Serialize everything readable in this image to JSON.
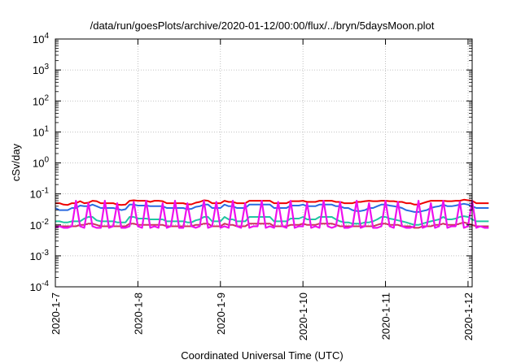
{
  "chart_data": {
    "type": "line",
    "title": "/data/run/goesPlots/archive/2020-01-12/00:00/flux/../bryn/5daysMoon.plot",
    "xlabel": "Coordinated Universal Time (UTC)",
    "ylabel": "cSv/day",
    "y_scale": "log",
    "ylim": [
      0.0001,
      10000
    ],
    "xlim": [
      0,
      5.05
    ],
    "grid": true,
    "legend": "none",
    "x_ticks": [
      {
        "value": 0,
        "label": "2020-1-7"
      },
      {
        "value": 1,
        "label": "2020-1-8"
      },
      {
        "value": 2,
        "label": "2020-1-9"
      },
      {
        "value": 3,
        "label": "2020-1-10"
      },
      {
        "value": 4,
        "label": "2020-1-11"
      },
      {
        "value": 5,
        "label": "2020-1-12"
      }
    ],
    "y_ticks": [
      {
        "value": 0.0001,
        "base": "10",
        "exp": "-4"
      },
      {
        "value": 0.001,
        "base": "10",
        "exp": "-3"
      },
      {
        "value": 0.01,
        "base": "10",
        "exp": "-2"
      },
      {
        "value": 0.1,
        "base": "10",
        "exp": "-1"
      },
      {
        "value": 1,
        "base": "10",
        "exp": "0"
      },
      {
        "value": 10,
        "base": "10",
        "exp": "1"
      },
      {
        "value": 100,
        "base": "10",
        "exp": "2"
      },
      {
        "value": 1000,
        "base": "10",
        "exp": "3"
      },
      {
        "value": 10000,
        "base": "10",
        "exp": "4"
      }
    ],
    "x_step": 0.05,
    "series": [
      {
        "color": "#ee0000",
        "values": [
          0.05,
          0.05,
          0.045,
          0.044,
          0.05,
          0.05,
          0.058,
          0.05,
          0.052,
          0.06,
          0.058,
          0.05,
          0.05,
          0.05,
          0.05,
          0.045,
          0.044,
          0.045,
          0.06,
          0.062,
          0.06,
          0.06,
          0.06,
          0.055,
          0.06,
          0.06,
          0.058,
          0.05,
          0.05,
          0.05,
          0.05,
          0.05,
          0.046,
          0.046,
          0.052,
          0.055,
          0.062,
          0.06,
          0.05,
          0.05,
          0.05,
          0.06,
          0.055,
          0.055,
          0.05,
          0.05,
          0.05,
          0.06,
          0.06,
          0.06,
          0.06,
          0.06,
          0.06,
          0.05,
          0.05,
          0.05,
          0.05,
          0.058,
          0.058,
          0.058,
          0.06,
          0.055,
          0.055,
          0.055,
          0.06,
          0.06,
          0.06,
          0.06,
          0.055,
          0.055,
          0.05,
          0.05,
          0.05,
          0.055,
          0.055,
          0.058,
          0.06,
          0.058,
          0.058,
          0.06,
          0.06,
          0.058,
          0.058,
          0.055,
          0.055,
          0.05,
          0.05,
          0.045,
          0.045,
          0.05,
          0.055,
          0.06,
          0.06,
          0.06,
          0.06,
          0.058,
          0.058,
          0.06,
          0.06,
          0.065,
          0.062,
          0.06,
          0.05,
          0.05,
          0.05,
          0.05
        ]
      },
      {
        "color": "#2a6ae0",
        "values": [
          0.035,
          0.03,
          0.03,
          0.03,
          0.035,
          0.035,
          0.042,
          0.04,
          0.04,
          0.045,
          0.04,
          0.035,
          0.035,
          0.035,
          0.035,
          0.033,
          0.03,
          0.032,
          0.045,
          0.045,
          0.042,
          0.042,
          0.042,
          0.04,
          0.04,
          0.04,
          0.04,
          0.035,
          0.035,
          0.035,
          0.035,
          0.035,
          0.032,
          0.033,
          0.038,
          0.04,
          0.045,
          0.045,
          0.035,
          0.035,
          0.035,
          0.045,
          0.04,
          0.04,
          0.035,
          0.035,
          0.035,
          0.045,
          0.045,
          0.045,
          0.045,
          0.045,
          0.045,
          0.035,
          0.035,
          0.035,
          0.035,
          0.042,
          0.042,
          0.042,
          0.045,
          0.04,
          0.04,
          0.04,
          0.045,
          0.045,
          0.045,
          0.045,
          0.04,
          0.04,
          0.035,
          0.035,
          0.03,
          0.028,
          0.028,
          0.03,
          0.035,
          0.035,
          0.04,
          0.045,
          0.045,
          0.042,
          0.04,
          0.038,
          0.035,
          0.03,
          0.028,
          0.026,
          0.026,
          0.028,
          0.03,
          0.035,
          0.038,
          0.04,
          0.045,
          0.04,
          0.04,
          0.042,
          0.045,
          0.048,
          0.045,
          0.04,
          0.035,
          0.035,
          0.035,
          0.035
        ]
      },
      {
        "color": "#20c6a0",
        "values": [
          0.013,
          0.013,
          0.012,
          0.012,
          0.013,
          0.013,
          0.013,
          0.016,
          0.018,
          0.018,
          0.014,
          0.013,
          0.013,
          0.013,
          0.013,
          0.012,
          0.012,
          0.012,
          0.018,
          0.018,
          0.016,
          0.016,
          0.016,
          0.015,
          0.015,
          0.015,
          0.015,
          0.013,
          0.013,
          0.013,
          0.013,
          0.013,
          0.012,
          0.012,
          0.014,
          0.015,
          0.018,
          0.018,
          0.013,
          0.013,
          0.013,
          0.018,
          0.015,
          0.015,
          0.013,
          0.013,
          0.013,
          0.018,
          0.018,
          0.018,
          0.018,
          0.018,
          0.018,
          0.013,
          0.013,
          0.013,
          0.013,
          0.016,
          0.016,
          0.016,
          0.018,
          0.015,
          0.015,
          0.015,
          0.018,
          0.018,
          0.018,
          0.018,
          0.015,
          0.013,
          0.012,
          0.012,
          0.011,
          0.011,
          0.011,
          0.012,
          0.012,
          0.013,
          0.015,
          0.018,
          0.018,
          0.016,
          0.015,
          0.014,
          0.013,
          0.012,
          0.011,
          0.01,
          0.01,
          0.011,
          0.012,
          0.013,
          0.014,
          0.015,
          0.018,
          0.015,
          0.015,
          0.016,
          0.018,
          0.019,
          0.018,
          0.015,
          0.013,
          0.013,
          0.013,
          0.013
        ]
      },
      {
        "color": "#cc3360",
        "values": [
          0.009,
          0.009,
          0.009,
          0.009,
          0.009,
          0.009,
          0.01,
          0.01,
          0.011,
          0.011,
          0.01,
          0.009,
          0.009,
          0.009,
          0.009,
          0.009,
          0.009,
          0.009,
          0.011,
          0.011,
          0.01,
          0.01,
          0.01,
          0.01,
          0.01,
          0.01,
          0.01,
          0.009,
          0.009,
          0.009,
          0.009,
          0.009,
          0.009,
          0.009,
          0.01,
          0.01,
          0.011,
          0.011,
          0.009,
          0.009,
          0.009,
          0.011,
          0.01,
          0.01,
          0.009,
          0.009,
          0.009,
          0.011,
          0.011,
          0.011,
          0.011,
          0.011,
          0.011,
          0.009,
          0.009,
          0.009,
          0.009,
          0.01,
          0.01,
          0.01,
          0.011,
          0.01,
          0.01,
          0.01,
          0.011,
          0.011,
          0.011,
          0.011,
          0.01,
          0.009,
          0.009,
          0.009,
          0.009,
          0.009,
          0.009,
          0.009,
          0.009,
          0.009,
          0.01,
          0.011,
          0.011,
          0.01,
          0.01,
          0.01,
          0.009,
          0.009,
          0.009,
          0.008,
          0.008,
          0.009,
          0.009,
          0.009,
          0.01,
          0.01,
          0.011,
          0.01,
          0.01,
          0.01,
          0.011,
          0.012,
          0.011,
          0.01,
          0.009,
          0.009,
          0.009,
          0.009
        ]
      },
      {
        "color": "#ee10ee",
        "values": [
          0.008,
          0.009,
          0.008,
          0.008,
          0.009,
          0.06,
          0.009,
          0.008,
          0.05,
          0.009,
          0.008,
          0.008,
          0.06,
          0.008,
          0.009,
          0.05,
          0.008,
          0.008,
          0.009,
          0.055,
          0.009,
          0.008,
          0.06,
          0.008,
          0.009,
          0.008,
          0.05,
          0.008,
          0.009,
          0.06,
          0.008,
          0.008,
          0.05,
          0.009,
          0.008,
          0.009,
          0.06,
          0.008,
          0.009,
          0.055,
          0.008,
          0.009,
          0.008,
          0.06,
          0.009,
          0.008,
          0.05,
          0.008,
          0.009,
          0.009,
          0.06,
          0.008,
          0.009,
          0.008,
          0.055,
          0.009,
          0.008,
          0.06,
          0.008,
          0.009,
          0.009,
          0.05,
          0.008,
          0.009,
          0.008,
          0.06,
          0.009,
          0.008,
          0.009,
          0.055,
          0.008,
          0.008,
          0.009,
          0.06,
          0.008,
          0.009,
          0.05,
          0.008,
          0.008,
          0.009,
          0.06,
          0.009,
          0.008,
          0.055,
          0.009,
          0.008,
          0.008,
          0.009,
          0.06,
          0.008,
          0.009,
          0.05,
          0.008,
          0.009,
          0.06,
          0.008,
          0.009,
          0.009,
          0.055,
          0.008,
          0.009,
          0.06,
          0.008,
          0.009,
          0.008,
          0.008
        ]
      }
    ]
  }
}
